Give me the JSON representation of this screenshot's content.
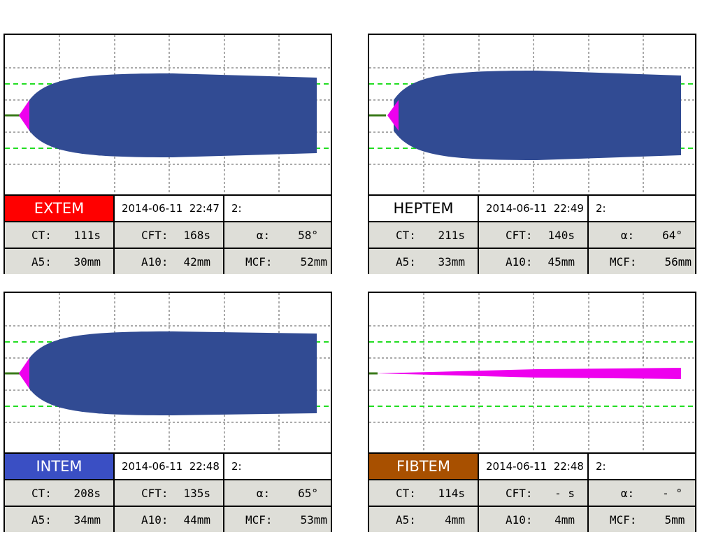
{
  "panels": [
    {
      "test": "EXTEM",
      "datetime": "2014-06-11  22:47",
      "channel": "2:",
      "rows": [
        [
          {
            "label": "CT:",
            "value": "111s"
          },
          {
            "label": "CFT:",
            "value": "168s"
          },
          {
            "label": "α:",
            "value": "58°"
          }
        ],
        [
          {
            "label": "A5:",
            "value": "30mm"
          },
          {
            "label": "A10:",
            "value": "42mm"
          },
          {
            "label": "MCF:",
            "value": "52mm"
          }
        ]
      ]
    },
    {
      "test": "HEPTEM",
      "datetime": "2014-06-11  22:49",
      "channel": "2:",
      "rows": [
        [
          {
            "label": "CT:",
            "value": "211s"
          },
          {
            "label": "CFT:",
            "value": "140s"
          },
          {
            "label": "α:",
            "value": "64°"
          }
        ],
        [
          {
            "label": "A5:",
            "value": "33mm"
          },
          {
            "label": "A10:",
            "value": "45mm"
          },
          {
            "label": "MCF:",
            "value": "56mm"
          }
        ]
      ]
    },
    {
      "test": "INTEM",
      "datetime": "2014-06-11  22:48",
      "channel": "2:",
      "rows": [
        [
          {
            "label": "CT:",
            "value": "208s"
          },
          {
            "label": "CFT:",
            "value": "135s"
          },
          {
            "label": "α:",
            "value": "65°"
          }
        ],
        [
          {
            "label": "A5:",
            "value": "34mm"
          },
          {
            "label": "A10:",
            "value": "44mm"
          },
          {
            "label": "MCF:",
            "value": "53mm"
          }
        ]
      ]
    },
    {
      "test": "FIBTEM",
      "datetime": "2014-06-11  22:48",
      "channel": "2:",
      "rows": [
        [
          {
            "label": "CT:",
            "value": "114s"
          },
          {
            "label": "CFT:",
            "value": "- s"
          },
          {
            "label": "α:",
            "value": "- °"
          }
        ],
        [
          {
            "label": "A5:",
            "value": "4mm"
          },
          {
            "label": "A10:",
            "value": "4mm"
          },
          {
            "label": "MCF:",
            "value": "5mm"
          }
        ]
      ]
    }
  ]
}
